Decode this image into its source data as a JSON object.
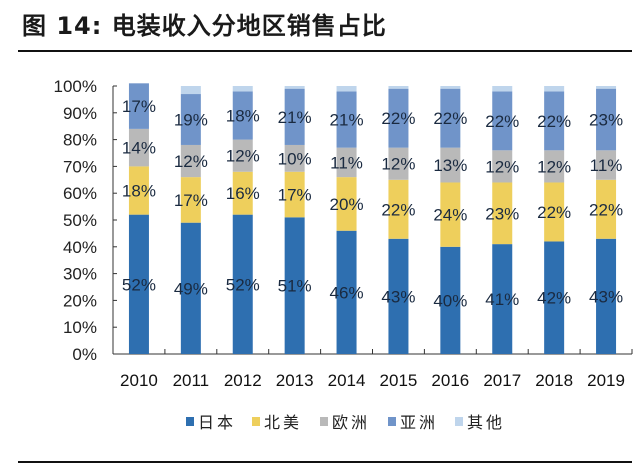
{
  "chart_data": {
    "type": "bar",
    "stacked": true,
    "title": "图 14: 电装收入分地区销售占比",
    "xlabel": "",
    "ylabel": "",
    "ylim": [
      0,
      100
    ],
    "yticks": [
      "0%",
      "10%",
      "20%",
      "30%",
      "40%",
      "50%",
      "60%",
      "70%",
      "80%",
      "90%",
      "100%"
    ],
    "categories": [
      "2010",
      "2011",
      "2012",
      "2013",
      "2014",
      "2015",
      "2016",
      "2017",
      "2018",
      "2019"
    ],
    "series": [
      {
        "name": "日本",
        "color": "#2e6fb0",
        "values": [
          52,
          49,
          52,
          51,
          46,
          43,
          40,
          41,
          42,
          43
        ],
        "labeled": true
      },
      {
        "name": "北美",
        "color": "#eecf5c",
        "values": [
          18,
          17,
          16,
          17,
          20,
          22,
          24,
          23,
          22,
          22
        ],
        "labeled": true
      },
      {
        "name": "欧洲",
        "color": "#b9b9b9",
        "values": [
          14,
          12,
          12,
          10,
          11,
          12,
          13,
          12,
          12,
          11
        ],
        "labeled": true
      },
      {
        "name": "亚洲",
        "color": "#7094c9",
        "values": [
          17,
          19,
          18,
          21,
          21,
          22,
          22,
          22,
          22,
          23
        ],
        "labeled": true
      },
      {
        "name": "其他",
        "color": "#bfd5ec",
        "values": [
          0,
          3,
          2,
          1,
          2,
          1,
          1,
          2,
          2,
          1
        ],
        "labeled": false
      }
    ],
    "legend_position": "bottom",
    "grid": false
  }
}
